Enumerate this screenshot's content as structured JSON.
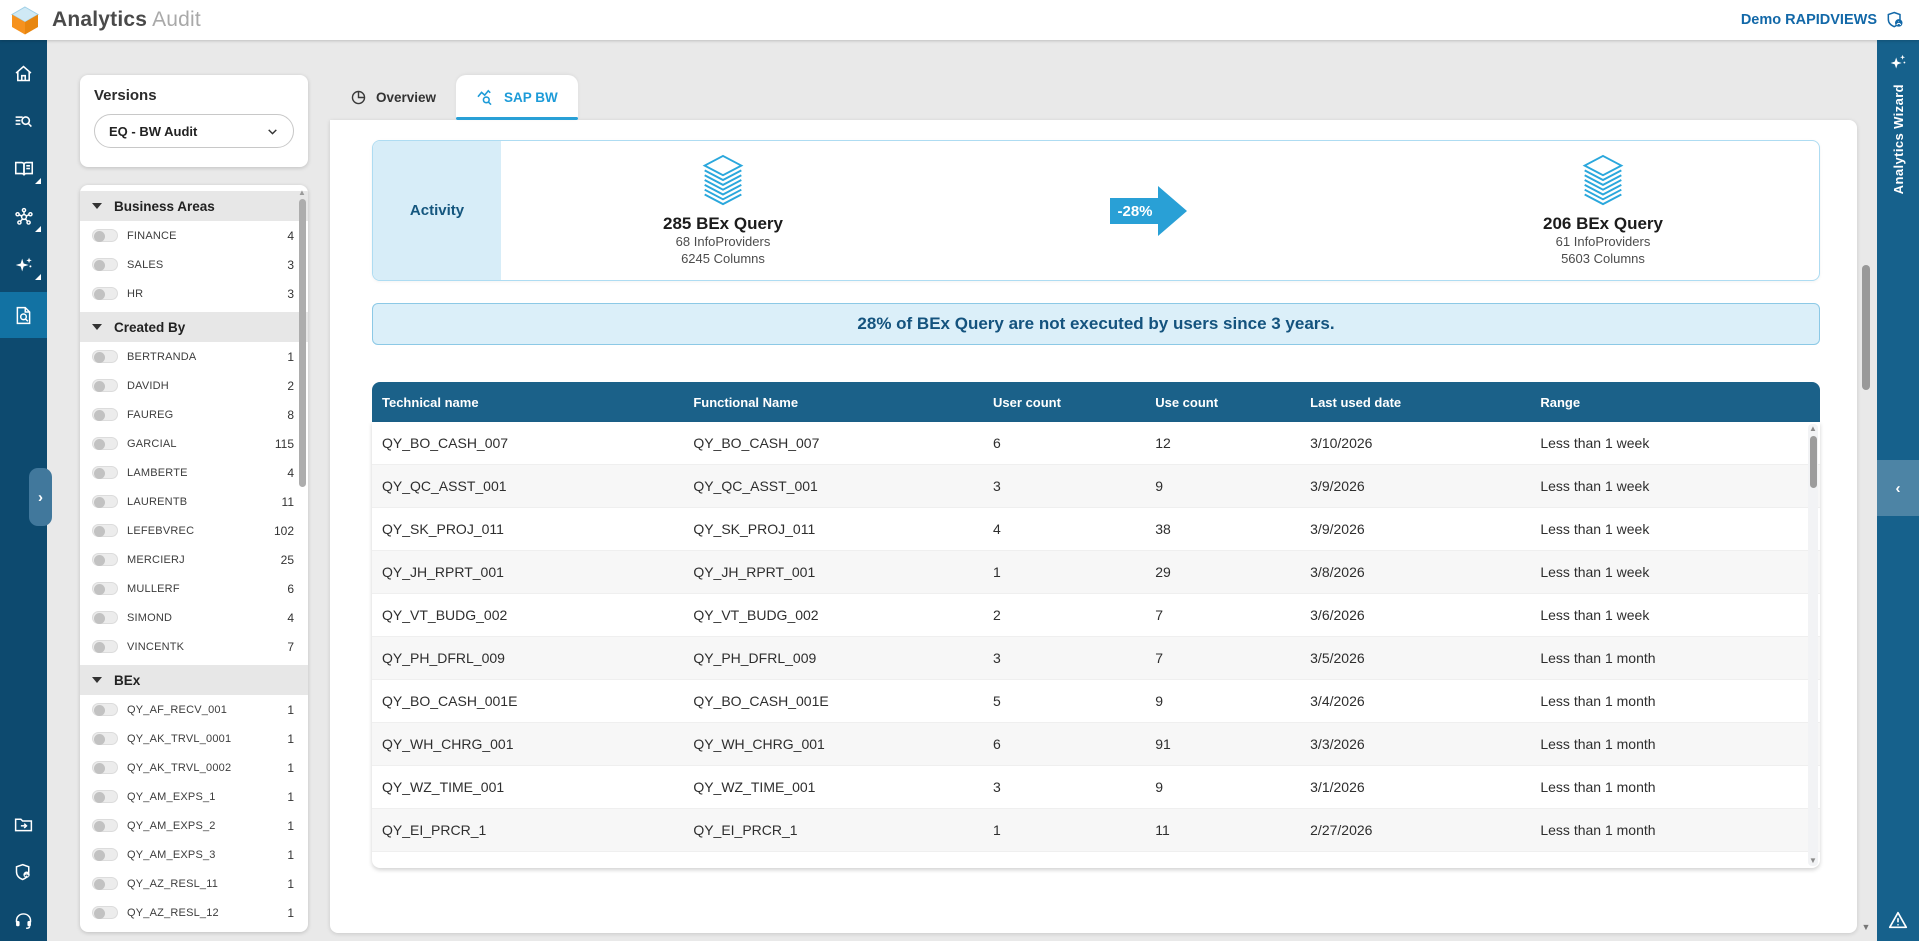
{
  "header": {
    "title_primary": "Analytics",
    "title_secondary": "Audit",
    "user_label": "Demo RAPIDVIEWS"
  },
  "versions": {
    "title": "Versions",
    "selected": "EQ - BW Audit"
  },
  "facets": [
    {
      "title": "Business Areas",
      "items": [
        {
          "label": "FINANCE",
          "count": "4"
        },
        {
          "label": "SALES",
          "count": "3"
        },
        {
          "label": "HR",
          "count": "3"
        }
      ]
    },
    {
      "title": "Created By",
      "items": [
        {
          "label": "BERTRANDA",
          "count": "1"
        },
        {
          "label": "DAVIDH",
          "count": "2"
        },
        {
          "label": "FAUREG",
          "count": "8"
        },
        {
          "label": "GARCIAL",
          "count": "115"
        },
        {
          "label": "LAMBERTE",
          "count": "4"
        },
        {
          "label": "LAURENTB",
          "count": "11"
        },
        {
          "label": "LEFEBVREC",
          "count": "102"
        },
        {
          "label": "MERCIERJ",
          "count": "25"
        },
        {
          "label": "MULLERF",
          "count": "6"
        },
        {
          "label": "SIMOND",
          "count": "4"
        },
        {
          "label": "VINCENTK",
          "count": "7"
        }
      ]
    },
    {
      "title": "BEx",
      "items": [
        {
          "label": "QY_AF_RECV_001",
          "count": "1"
        },
        {
          "label": "QY_AK_TRVL_0001",
          "count": "1"
        },
        {
          "label": "QY_AK_TRVL_0002",
          "count": "1"
        },
        {
          "label": "QY_AM_EXPS_1",
          "count": "1"
        },
        {
          "label": "QY_AM_EXPS_2",
          "count": "1"
        },
        {
          "label": "QY_AM_EXPS_3",
          "count": "1"
        },
        {
          "label": "QY_AZ_RESL_11",
          "count": "1"
        },
        {
          "label": "QY_AZ_RESL_12",
          "count": "1"
        }
      ]
    }
  ],
  "tabs": [
    {
      "label": "Overview",
      "icon": "pie-chart-icon",
      "active": false
    },
    {
      "label": "SAP BW",
      "icon": "line-chart-search-icon",
      "active": true
    }
  ],
  "activity": {
    "label": "Activity",
    "before": {
      "title": "285 BEx Query",
      "line1": "68 InfoProviders",
      "line2": "6245 Columns"
    },
    "change": "-28%",
    "after": {
      "title": "206 BEx Query",
      "line1": "61 InfoProviders",
      "line2": "5603 Columns"
    }
  },
  "insight": "28% of BEx Query are not executed by users since 3 years.",
  "table": {
    "columns": [
      "Technical name",
      "Functional Name",
      "User count",
      "Use count",
      "Last used date",
      "Range"
    ],
    "rows": [
      [
        "QY_BO_CASH_007",
        "QY_BO_CASH_007",
        "6",
        "12",
        "3/10/2026",
        "Less than 1 week"
      ],
      [
        "QY_QC_ASST_001",
        "QY_QC_ASST_001",
        "3",
        "9",
        "3/9/2026",
        "Less than 1 week"
      ],
      [
        "QY_SK_PROJ_011",
        "QY_SK_PROJ_011",
        "4",
        "38",
        "3/9/2026",
        "Less than 1 week"
      ],
      [
        "QY_JH_RPRT_001",
        "QY_JH_RPRT_001",
        "1",
        "29",
        "3/8/2026",
        "Less than 1 week"
      ],
      [
        "QY_VT_BUDG_002",
        "QY_VT_BUDG_002",
        "2",
        "7",
        "3/6/2026",
        "Less than 1 week"
      ],
      [
        "QY_PH_DFRL_009",
        "QY_PH_DFRL_009",
        "3",
        "7",
        "3/5/2026",
        "Less than 1 month"
      ],
      [
        "QY_BO_CASH_001E",
        "QY_BO_CASH_001E",
        "5",
        "9",
        "3/4/2026",
        "Less than 1 month"
      ],
      [
        "QY_WH_CHRG_001",
        "QY_WH_CHRG_001",
        "6",
        "91",
        "3/3/2026",
        "Less than 1 month"
      ],
      [
        "QY_WZ_TIME_001",
        "QY_WZ_TIME_001",
        "3",
        "9",
        "3/1/2026",
        "Less than 1 month"
      ],
      [
        "QY_EI_PRCR_1",
        "QY_EI_PRCR_1",
        "1",
        "11",
        "2/27/2026",
        "Less than 1 month"
      ]
    ]
  },
  "wizard": {
    "label": "Analytics Wizard"
  },
  "icons": {
    "home-icon": "house",
    "search-audit-icon": "magnifier+lines",
    "catalog-icon": "open-book",
    "network-icon": "hub",
    "ai-sparkles-icon": "sparkles",
    "audit-document-icon": "document+magnifier",
    "export-icon": "folder+arrow",
    "privacy-shield-icon": "shield+badge",
    "support-headset-icon": "headset",
    "pie-chart-icon": "circle-slices",
    "line-chart-search-icon": "zigzag+magnifier",
    "layers-icon": "stacked-layers",
    "change-arrow-icon": "right-arrow",
    "shield-user-icon": "shield+person",
    "warning-icon": "triangle-exclamation",
    "chevron-down-icon": "v",
    "chevron-right-icon": ">",
    "chevron-left-icon": "<"
  },
  "colors": {
    "rail_bg": "#0d4a6f",
    "rail_active": "#1272a3",
    "strip_bg": "#16618c",
    "accent_blue": "#29a0d6",
    "tab_active_text": "#1d9bd8",
    "table_header_bg": "#1b6189",
    "insight_bg": "#dbeff9",
    "insight_text": "#14537e",
    "activity_label_bg": "#d7edf8",
    "link_blue": "#1268a8",
    "page_bg": "#e9e9e9"
  }
}
